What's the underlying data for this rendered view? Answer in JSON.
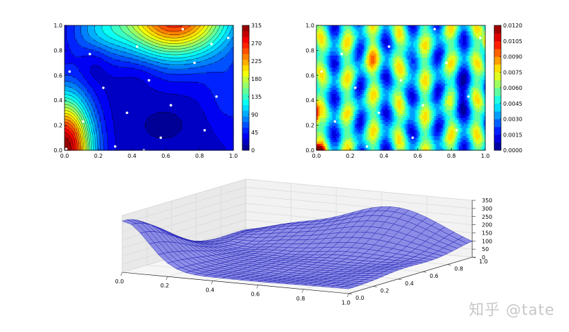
{
  "watermark": "知乎 @tate",
  "chart_data": [
    {
      "type": "heatmap",
      "id": "contour-left",
      "title": "",
      "xlabel": "",
      "ylabel": "",
      "xlim": [
        0.0,
        1.0
      ],
      "ylim": [
        0.0,
        1.0
      ],
      "xticks": [
        "0.0",
        "0.2",
        "0.4",
        "0.6",
        "0.8",
        "1.0"
      ],
      "yticks": [
        "0.0",
        "0.2",
        "0.4",
        "0.6",
        "0.8",
        "1.0"
      ],
      "colorbar": {
        "min": 0,
        "max": 315,
        "levels": 22,
        "ticks": [
          "0",
          "45",
          "90",
          "135",
          "180",
          "225",
          "270",
          "315"
        ]
      },
      "contour_lines": true,
      "samples": [
        {
          "x": 0.03,
          "y": 0.63
        },
        {
          "x": 0.15,
          "y": 0.77
        },
        {
          "x": 0.23,
          "y": 0.5
        },
        {
          "x": 0.11,
          "y": 0.23
        },
        {
          "x": 0.3,
          "y": 0.03
        },
        {
          "x": 0.37,
          "y": 0.3
        },
        {
          "x": 0.43,
          "y": 0.83
        },
        {
          "x": 0.5,
          "y": 0.56
        },
        {
          "x": 0.57,
          "y": 0.1
        },
        {
          "x": 0.63,
          "y": 0.36
        },
        {
          "x": 0.7,
          "y": 0.97
        },
        {
          "x": 0.77,
          "y": 0.7
        },
        {
          "x": 0.83,
          "y": 0.16
        },
        {
          "x": 0.9,
          "y": 0.43
        },
        {
          "x": 0.97,
          "y": 0.9
        },
        {
          "x": 0.87,
          "y": 0.85
        },
        {
          "x": 0.47,
          "y": 0.0
        },
        {
          "x": 0.01,
          "y": 0.01
        }
      ]
    },
    {
      "type": "heatmap",
      "id": "error-right",
      "title": "",
      "xlabel": "",
      "ylabel": "",
      "xlim": [
        0.0,
        1.0
      ],
      "ylim": [
        0.0,
        1.0
      ],
      "xticks": [
        "0.0",
        "0.2",
        "0.4",
        "0.6",
        "0.8",
        "1.0"
      ],
      "yticks": [
        "0.0",
        "0.2",
        "0.4",
        "0.6",
        "0.8",
        "1.0"
      ],
      "colorbar": {
        "min": 0.0,
        "max": 0.012,
        "levels": 16,
        "ticks": [
          "0.0000",
          "0.0015",
          "0.0030",
          "0.0045",
          "0.0060",
          "0.0075",
          "0.0090",
          "0.0105",
          "0.0120"
        ]
      },
      "contour_lines": false,
      "samples": [
        {
          "x": 0.03,
          "y": 0.63
        },
        {
          "x": 0.15,
          "y": 0.77
        },
        {
          "x": 0.23,
          "y": 0.5
        },
        {
          "x": 0.11,
          "y": 0.23
        },
        {
          "x": 0.3,
          "y": 0.03
        },
        {
          "x": 0.37,
          "y": 0.3
        },
        {
          "x": 0.43,
          "y": 0.83
        },
        {
          "x": 0.5,
          "y": 0.56
        },
        {
          "x": 0.57,
          "y": 0.1
        },
        {
          "x": 0.63,
          "y": 0.36
        },
        {
          "x": 0.7,
          "y": 0.97
        },
        {
          "x": 0.77,
          "y": 0.7
        },
        {
          "x": 0.83,
          "y": 0.16
        },
        {
          "x": 0.9,
          "y": 0.43
        },
        {
          "x": 0.97,
          "y": 0.9
        },
        {
          "x": 0.47,
          "y": 0.0
        }
      ]
    },
    {
      "type": "area",
      "subtype": "surface3d",
      "id": "surface-bottom",
      "title": "",
      "xlim": [
        0.0,
        1.0
      ],
      "ylim": [
        0.0,
        1.0
      ],
      "zlim": [
        0,
        350
      ],
      "xticks": [
        "0.0",
        "0.2",
        "0.4",
        "0.6",
        "0.8",
        "1.0"
      ],
      "yticks": [
        "0.0",
        "0.2",
        "0.4",
        "0.6",
        "0.8",
        "1.0"
      ],
      "zticks": [
        "0",
        "50",
        "100",
        "150",
        "200",
        "250",
        "300",
        "350"
      ],
      "grid": true,
      "mesh_resolution": 25,
      "surface_color": "#4f4fe0",
      "edge_color": "#1a1aa8",
      "surface_peaks": [
        {
          "x": 0.0,
          "y": 0.0,
          "z": 315
        },
        {
          "x": 0.55,
          "y": 1.0,
          "z": 260
        },
        {
          "x": 0.5,
          "y": 0.3,
          "z": 40
        }
      ]
    }
  ]
}
